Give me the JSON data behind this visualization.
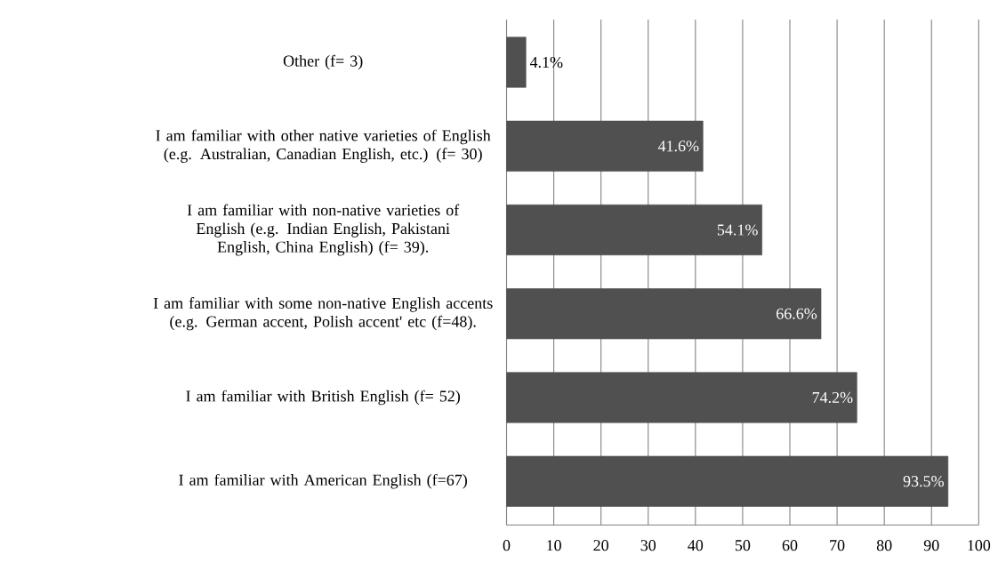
{
  "chart_data": {
    "type": "bar",
    "orientation": "horizontal",
    "categories": [
      "Other (f= 3)",
      "I am familiar with other native varieties of English (e.g. Australian, Canadian English, etc.) (f= 30)",
      "I am familiar with non-native varieties of English (e.g. Indian English, Pakistani English, China English) (f= 39).",
      "I am familiar with some non-native English accents (e.g. German accent, Polish accent' etc (f=48).",
      "I am familiar with British English (f= 52)",
      "I am familiar with American English (f=67)"
    ],
    "values": [
      4.1,
      41.6,
      54.1,
      66.6,
      74.2,
      93.5
    ],
    "value_labels": [
      "4.1%",
      "41.6%",
      "54.1%",
      "66.6%",
      "74.2%",
      "93.5%"
    ],
    "color": "#505050",
    "xlim": [
      0,
      100
    ],
    "xticks": [
      0,
      10,
      20,
      30,
      40,
      50,
      60,
      70,
      80,
      90,
      100
    ],
    "grid": "x"
  }
}
